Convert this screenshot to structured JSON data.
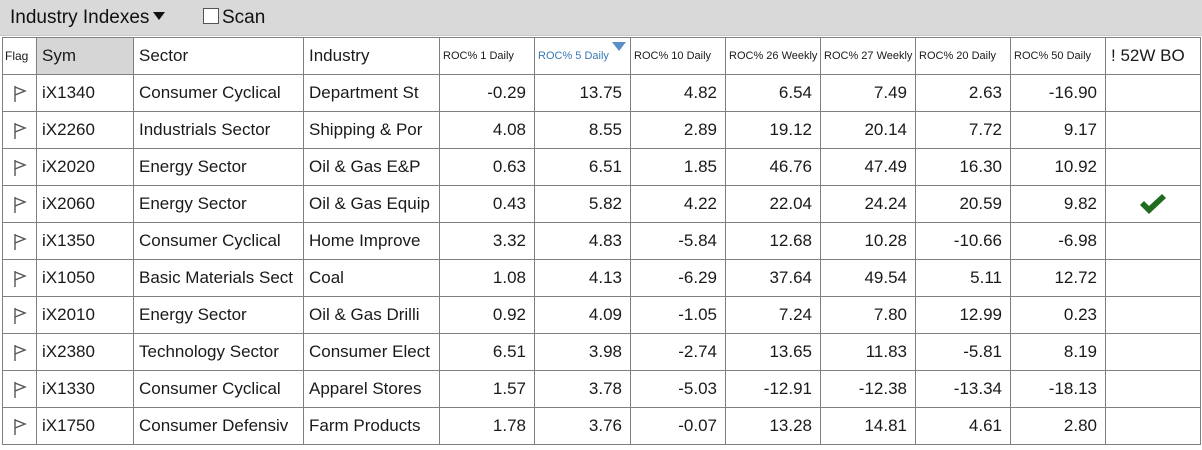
{
  "toolbar": {
    "title": "Industry Indexes",
    "scan_label": "Scan"
  },
  "columns": {
    "flag": "Flag",
    "sym": "Sym",
    "sector": "Sector",
    "industry": "Industry",
    "roc1": "ROC% 1 Daily",
    "roc5": "ROC% 5 Daily",
    "roc10": "ROC% 10 Daily",
    "roc26w": "ROC% 26 Weekly",
    "roc27w": "ROC% 27 Weekly",
    "roc20": "ROC% 20 Daily",
    "roc50": "ROC% 50 Daily",
    "bo52": "! 52W BO"
  },
  "sort": {
    "column": "roc5",
    "direction": "descending"
  },
  "colors": {
    "sort_header": "#3a79b5",
    "checkmark": "#1f6b1f",
    "toolbar_bg": "#d9d9d9"
  },
  "rows": [
    {
      "sym": "iX1340",
      "sector": "Consumer Cyclical",
      "industry": "Department St",
      "roc1": "-0.29",
      "roc5": "13.75",
      "roc10": "4.82",
      "roc26w": "6.54",
      "roc27w": "7.49",
      "roc20": "2.63",
      "roc50": "-16.90",
      "bo52": false
    },
    {
      "sym": "iX2260",
      "sector": "Industrials Sector",
      "industry": "Shipping & Por",
      "roc1": "4.08",
      "roc5": "8.55",
      "roc10": "2.89",
      "roc26w": "19.12",
      "roc27w": "20.14",
      "roc20": "7.72",
      "roc50": "9.17",
      "bo52": false
    },
    {
      "sym": "iX2020",
      "sector": "Energy Sector",
      "industry": "Oil & Gas E&P",
      "roc1": "0.63",
      "roc5": "6.51",
      "roc10": "1.85",
      "roc26w": "46.76",
      "roc27w": "47.49",
      "roc20": "16.30",
      "roc50": "10.92",
      "bo52": false
    },
    {
      "sym": "iX2060",
      "sector": "Energy Sector",
      "industry": "Oil & Gas Equip",
      "roc1": "0.43",
      "roc5": "5.82",
      "roc10": "4.22",
      "roc26w": "22.04",
      "roc27w": "24.24",
      "roc20": "20.59",
      "roc50": "9.82",
      "bo52": true
    },
    {
      "sym": "iX1350",
      "sector": "Consumer Cyclical",
      "industry": "Home Improve",
      "roc1": "3.32",
      "roc5": "4.83",
      "roc10": "-5.84",
      "roc26w": "12.68",
      "roc27w": "10.28",
      "roc20": "-10.66",
      "roc50": "-6.98",
      "bo52": false
    },
    {
      "sym": "iX1050",
      "sector": "Basic Materials Sect",
      "industry": "Coal",
      "roc1": "1.08",
      "roc5": "4.13",
      "roc10": "-6.29",
      "roc26w": "37.64",
      "roc27w": "49.54",
      "roc20": "5.11",
      "roc50": "12.72",
      "bo52": false
    },
    {
      "sym": "iX2010",
      "sector": "Energy Sector",
      "industry": "Oil & Gas Drilli",
      "roc1": "0.92",
      "roc5": "4.09",
      "roc10": "-1.05",
      "roc26w": "7.24",
      "roc27w": "7.80",
      "roc20": "12.99",
      "roc50": "0.23",
      "bo52": false
    },
    {
      "sym": "iX2380",
      "sector": "Technology Sector",
      "industry": "Consumer Elect",
      "roc1": "6.51",
      "roc5": "3.98",
      "roc10": "-2.74",
      "roc26w": "13.65",
      "roc27w": "11.83",
      "roc20": "-5.81",
      "roc50": "8.19",
      "bo52": false
    },
    {
      "sym": "iX1330",
      "sector": "Consumer Cyclical",
      "industry": "Apparel Stores",
      "roc1": "1.57",
      "roc5": "3.78",
      "roc10": "-5.03",
      "roc26w": "-12.91",
      "roc27w": "-12.38",
      "roc20": "-13.34",
      "roc50": "-18.13",
      "bo52": false
    },
    {
      "sym": "iX1750",
      "sector": "Consumer Defensiv",
      "industry": "Farm Products",
      "roc1": "1.78",
      "roc5": "3.76",
      "roc10": "-0.07",
      "roc26w": "13.28",
      "roc27w": "14.81",
      "roc20": "4.61",
      "roc50": "2.80",
      "bo52": false
    }
  ]
}
